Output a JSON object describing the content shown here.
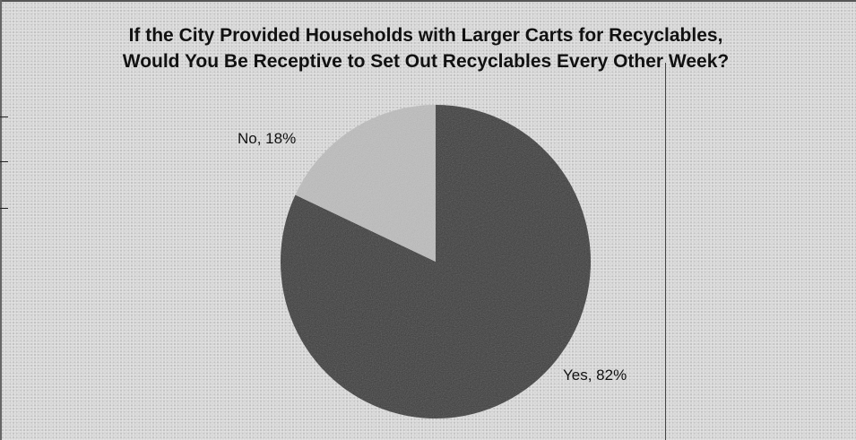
{
  "chart_data": {
    "type": "pie",
    "title_lines": [
      "If the City Provided Households with Larger Carts for Recyclables,",
      "Would You Be Receptive to Set Out Recyclables Every Other Week?"
    ],
    "categories": [
      "Yes",
      "No"
    ],
    "values": [
      82,
      18
    ],
    "data_labels": [
      "Yes, 82%",
      "No, 18%"
    ],
    "colors": [
      "#3a3a3a",
      "#bdbdbd"
    ],
    "legend": "none"
  }
}
